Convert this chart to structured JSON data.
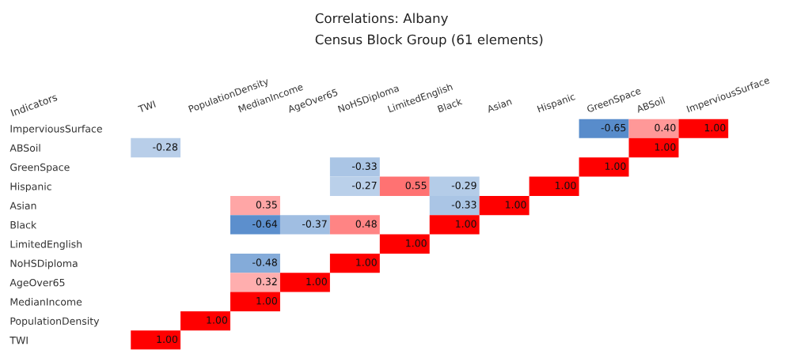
{
  "chart_data": {
    "type": "heatmap",
    "title": "Correlations: Albany",
    "subtitle": "Census Block Group (61 elements)",
    "ylabel": "Indicators",
    "categories": [
      "TWI",
      "PopulationDensity",
      "MedianIncome",
      "AgeOver65",
      "NoHSDiploma",
      "LimitedEnglish",
      "Black",
      "Asian",
      "Hispanic",
      "GreenSpace",
      "ABSoil",
      "ImperviousSurface"
    ],
    "y_categories": [
      "ImperviousSurface",
      "ABSoil",
      "GreenSpace",
      "Hispanic",
      "Asian",
      "Black",
      "LimitedEnglish",
      "NoHSDiploma",
      "AgeOver65",
      "MedianIncome",
      "PopulationDensity",
      "TWI"
    ],
    "cells": [
      [
        null,
        null,
        null,
        null,
        null,
        null,
        null,
        null,
        null,
        -0.65,
        0.4,
        1.0
      ],
      [
        -0.28,
        null,
        null,
        null,
        null,
        null,
        null,
        null,
        null,
        null,
        1.0,
        null
      ],
      [
        null,
        null,
        null,
        null,
        -0.33,
        null,
        null,
        null,
        null,
        1.0,
        null,
        null
      ],
      [
        null,
        null,
        null,
        null,
        -0.27,
        0.55,
        -0.29,
        null,
        1.0,
        null,
        null,
        null
      ],
      [
        null,
        null,
        0.35,
        null,
        null,
        null,
        -0.33,
        1.0,
        null,
        null,
        null,
        null
      ],
      [
        null,
        null,
        -0.64,
        -0.37,
        0.48,
        null,
        1.0,
        null,
        null,
        null,
        null,
        null
      ],
      [
        null,
        null,
        null,
        null,
        null,
        1.0,
        null,
        null,
        null,
        null,
        null,
        null
      ],
      [
        null,
        null,
        -0.48,
        null,
        1.0,
        null,
        null,
        null,
        null,
        null,
        null,
        null
      ],
      [
        null,
        null,
        0.32,
        1.0,
        null,
        null,
        null,
        null,
        null,
        null,
        null,
        null
      ],
      [
        null,
        null,
        1.0,
        null,
        null,
        null,
        null,
        null,
        null,
        null,
        null,
        null
      ],
      [
        null,
        1.0,
        null,
        null,
        null,
        null,
        null,
        null,
        null,
        null,
        null,
        null
      ],
      [
        1.0,
        null,
        null,
        null,
        null,
        null,
        null,
        null,
        null,
        null,
        null,
        null
      ]
    ],
    "cell_labels": [
      [
        null,
        null,
        null,
        null,
        null,
        null,
        null,
        null,
        null,
        "-0.65",
        "0.40",
        "1.00"
      ],
      [
        "-0.28",
        null,
        null,
        null,
        null,
        null,
        null,
        null,
        null,
        null,
        "1.00",
        null
      ],
      [
        null,
        null,
        null,
        null,
        "-0.33",
        null,
        null,
        null,
        null,
        "1.00",
        null,
        null
      ],
      [
        null,
        null,
        null,
        null,
        "-0.27",
        "0.55",
        "-0.29",
        null,
        "1.00",
        null,
        null,
        null
      ],
      [
        null,
        null,
        "0.35",
        null,
        null,
        null,
        "-0.33",
        "1.00",
        null,
        null,
        null,
        null
      ],
      [
        null,
        null,
        "-0.64",
        "-0.37",
        "0.48",
        null,
        "1.00",
        null,
        null,
        null,
        null,
        null
      ],
      [
        null,
        null,
        null,
        null,
        null,
        "1.00",
        null,
        null,
        null,
        null,
        null,
        null
      ],
      [
        null,
        null,
        "-0.48",
        null,
        "1.00",
        null,
        null,
        null,
        null,
        null,
        null,
        null
      ],
      [
        null,
        null,
        "0.32",
        "1.00",
        null,
        null,
        null,
        null,
        null,
        null,
        null,
        null
      ],
      [
        null,
        null,
        "1.00",
        null,
        null,
        null,
        null,
        null,
        null,
        null,
        null,
        null
      ],
      [
        null,
        "1.00",
        null,
        null,
        null,
        null,
        null,
        null,
        null,
        null,
        null,
        null
      ],
      [
        "1.00",
        null,
        null,
        null,
        null,
        null,
        null,
        null,
        null,
        null,
        null,
        null
      ]
    ],
    "grid": false
  }
}
